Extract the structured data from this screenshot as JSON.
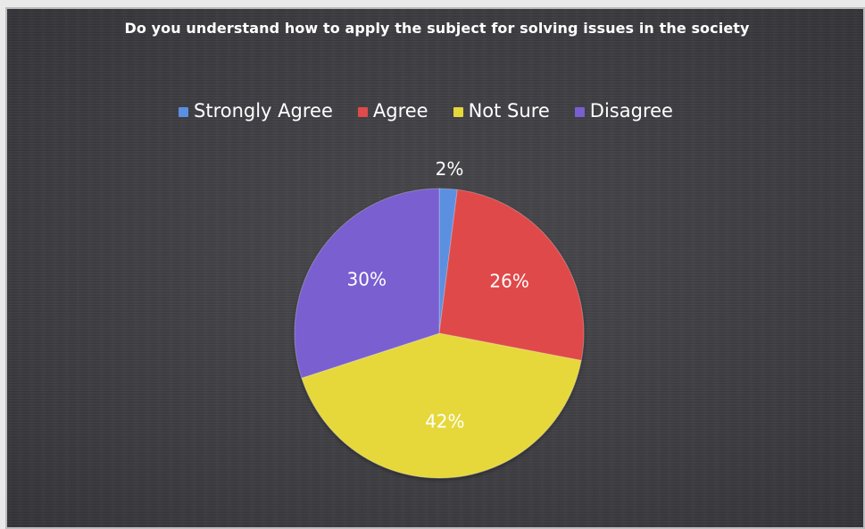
{
  "chart_data": {
    "type": "pie",
    "title": "Do you understand how to apply the subject for solving issues in the society",
    "categories": [
      "Strongly Agree",
      "Agree",
      "Not Sure",
      "Disagree"
    ],
    "values": [
      2,
      26,
      42,
      30
    ],
    "data_labels": [
      "2%",
      "26%",
      "42%",
      "30%"
    ],
    "colors": [
      "#5b8fe0",
      "#e04a4a",
      "#e6d83a",
      "#7a5fd0"
    ],
    "legend_placement": "top"
  }
}
